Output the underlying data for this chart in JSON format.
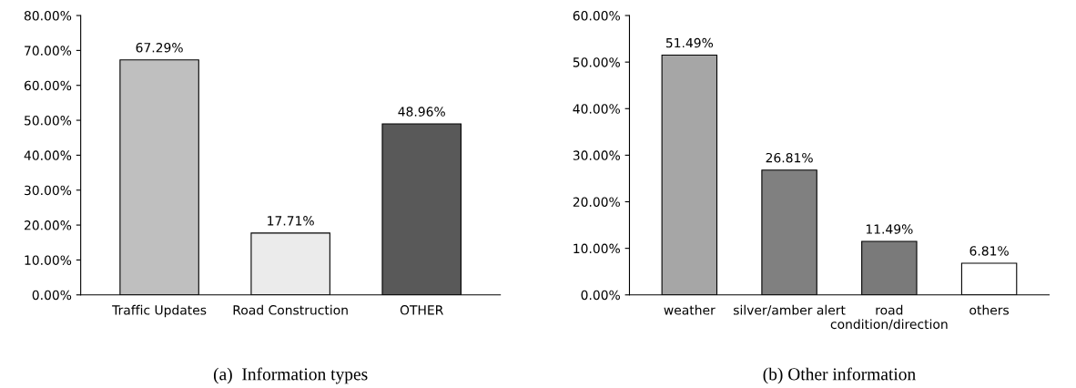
{
  "chart_data": [
    {
      "type": "bar",
      "title": "(a)  Information types",
      "categories": [
        "Traffic Updates",
        "Road Construction",
        "OTHER"
      ],
      "values": [
        67.29,
        17.71,
        48.96
      ],
      "colors": [
        "#bfbfbf",
        "#ebebeb",
        "#595959"
      ],
      "value_labels": [
        "67.29%",
        "17.71%",
        "48.96%"
      ],
      "ylim": [
        0,
        80
      ],
      "yticks": [
        {
          "value": 0,
          "label": "0.00%"
        },
        {
          "value": 10,
          "label": "10.00%"
        },
        {
          "value": 20,
          "label": "20.00%"
        },
        {
          "value": 30,
          "label": "30.00%"
        },
        {
          "value": 40,
          "label": "40.00%"
        },
        {
          "value": 50,
          "label": "50.00%"
        },
        {
          "value": 60,
          "label": "60.00%"
        },
        {
          "value": 70,
          "label": "70.00%"
        },
        {
          "value": 80,
          "label": "80.00%"
        }
      ],
      "grid": false
    },
    {
      "type": "bar",
      "title": "(b) Other information",
      "categories": [
        "weather",
        "silver/amber alert",
        "road\ncondition/direction",
        "others"
      ],
      "values": [
        51.49,
        26.81,
        11.49,
        6.81
      ],
      "colors": [
        "#a6a6a6",
        "#808080",
        "#7a7a7a",
        "#ffffff"
      ],
      "value_labels": [
        "51.49%",
        "26.81%",
        "11.49%",
        "6.81%"
      ],
      "ylim": [
        0,
        60
      ],
      "yticks": [
        {
          "value": 0,
          "label": "0.00%"
        },
        {
          "value": 10,
          "label": "10.00%"
        },
        {
          "value": 20,
          "label": "20.00%"
        },
        {
          "value": 30,
          "label": "30.00%"
        },
        {
          "value": 40,
          "label": "40.00%"
        },
        {
          "value": 50,
          "label": "50.00%"
        },
        {
          "value": 60,
          "label": "60.00%"
        }
      ],
      "grid": false
    }
  ]
}
